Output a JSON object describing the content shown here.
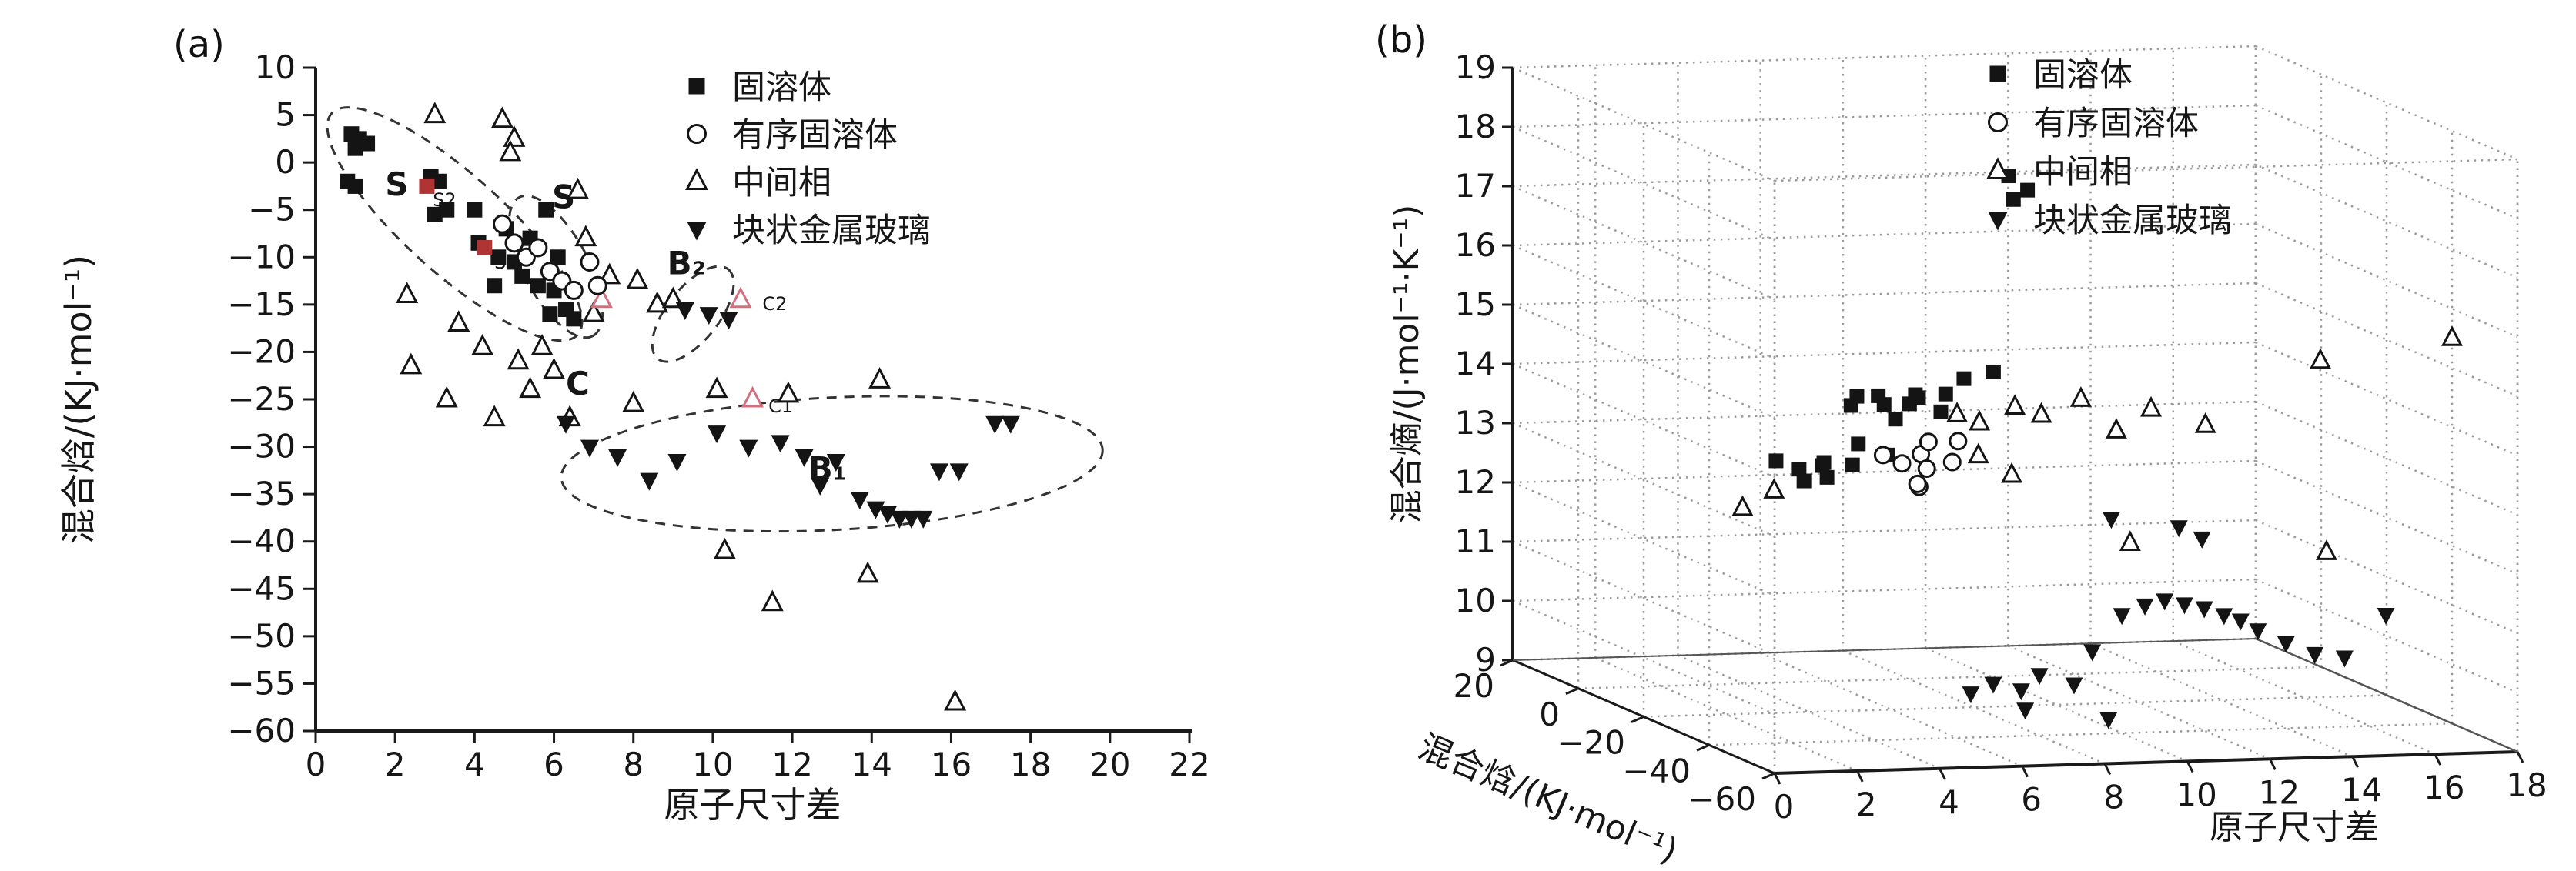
{
  "page": {
    "background": "#ffffff"
  },
  "colors": {
    "marker": "#141414",
    "axis": "#1a1a1a",
    "grid": "#9a9a9a",
    "region": "#333333",
    "annotation": "#c03038",
    "highlight_square": "#b03434",
    "highlight_triangle": "#d4707e"
  },
  "legend": {
    "items": [
      {
        "marker": "filled-square",
        "label": "固溶体"
      },
      {
        "marker": "open-circle",
        "label": "有序固溶体"
      },
      {
        "marker": "open-triangle",
        "label": "中间相"
      },
      {
        "marker": "filled-down-triangle",
        "label": "块状金属玻璃"
      }
    ]
  },
  "chart_data": [
    {
      "id": "a",
      "panel_label": "(a)",
      "type": "scatter",
      "xlabel": "原子尺寸差",
      "ylabel": "混合焓/(KJ·mol⁻¹)",
      "xlim": [
        0,
        22
      ],
      "ylim": [
        -60,
        10
      ],
      "xticks": [
        0,
        2,
        4,
        6,
        8,
        10,
        12,
        14,
        16,
        18,
        20,
        22
      ],
      "yticks": [
        10,
        5,
        0,
        -5,
        -10,
        -15,
        -20,
        -25,
        -30,
        -35,
        -40,
        -45,
        -50,
        -55,
        -60
      ],
      "grid": false,
      "legend_position": "top-right",
      "legend": [
        "固溶体",
        "有序固溶体",
        "中间相",
        "块状金属玻璃"
      ],
      "series": [
        {
          "name": "中间相",
          "marker": "open-triangle",
          "points": [
            [
              3.0,
              5
            ],
            [
              4.7,
              4.5
            ],
            [
              5.0,
              2.5
            ],
            [
              4.9,
              1
            ],
            [
              2.3,
              -14
            ],
            [
              2.4,
              -21.5
            ],
            [
              3.3,
              -25
            ],
            [
              3.6,
              -17
            ],
            [
              4.2,
              -19.5
            ],
            [
              4.5,
              -27
            ],
            [
              5.1,
              -21
            ],
            [
              5.7,
              -19.5
            ],
            [
              6.0,
              -22
            ],
            [
              6.4,
              -27
            ],
            [
              5.4,
              -24
            ],
            [
              6.6,
              -3
            ],
            [
              6.8,
              -8
            ],
            [
              7.4,
              -12
            ],
            [
              7.0,
              -16
            ],
            [
              8.1,
              -12.5
            ],
            [
              8.6,
              -15
            ],
            [
              9.0,
              -14.5
            ],
            [
              10.1,
              -24
            ],
            [
              11.9,
              -24.5
            ],
            [
              14.2,
              -23
            ],
            [
              10.3,
              -41
            ],
            [
              11.5,
              -46.5
            ],
            [
              13.9,
              -43.5
            ],
            [
              16.1,
              -57
            ],
            [
              8.0,
              -25.5
            ]
          ]
        },
        {
          "name": "中间相(标红)",
          "marker": "open-triangle",
          "color": "#d4707e",
          "in_legend": false,
          "points": [
            [
              7.2,
              -14.5
            ],
            [
              10.7,
              -14.5
            ],
            [
              11.0,
              -25
            ]
          ]
        },
        {
          "name": "固溶体",
          "marker": "filled-square",
          "points": [
            [
              0.9,
              3
            ],
            [
              1.1,
              2.5
            ],
            [
              1.0,
              1.5
            ],
            [
              1.3,
              2
            ],
            [
              0.8,
              -2
            ],
            [
              1.0,
              -2.5
            ],
            [
              2.9,
              -1.5
            ],
            [
              3.1,
              -2
            ],
            [
              3.0,
              -5.5
            ],
            [
              3.3,
              -5
            ],
            [
              4.0,
              -5
            ],
            [
              4.1,
              -8.5
            ],
            [
              4.6,
              -10
            ],
            [
              4.8,
              -7
            ],
            [
              5.0,
              -10.5
            ],
            [
              5.2,
              -12
            ],
            [
              5.4,
              -8
            ],
            [
              5.6,
              -13
            ],
            [
              5.8,
              -5
            ],
            [
              6.0,
              -13.5
            ],
            [
              6.1,
              -10
            ],
            [
              6.3,
              -15.5
            ],
            [
              6.5,
              -16.5
            ],
            [
              5.9,
              -16
            ],
            [
              4.5,
              -13
            ]
          ]
        },
        {
          "name": "固溶体(标红)",
          "marker": "filled-square",
          "color": "#b03434",
          "in_legend": false,
          "points": [
            [
              2.8,
              -2.5
            ],
            [
              4.25,
              -9
            ]
          ]
        },
        {
          "name": "有序固溶体",
          "marker": "open-circle",
          "points": [
            [
              4.7,
              -6.5
            ],
            [
              5.0,
              -8.5
            ],
            [
              5.3,
              -10
            ],
            [
              5.6,
              -9
            ],
            [
              5.9,
              -11.5
            ],
            [
              6.2,
              -12.5
            ],
            [
              6.5,
              -13.5
            ],
            [
              6.9,
              -10.5
            ],
            [
              7.1,
              -13
            ]
          ]
        },
        {
          "name": "块状金属玻璃",
          "marker": "filled-down-triangle",
          "points": [
            [
              6.3,
              -27.5
            ],
            [
              6.9,
              -30
            ],
            [
              7.6,
              -31
            ],
            [
              8.4,
              -33.5
            ],
            [
              9.3,
              -15.5
            ],
            [
              9.9,
              -16
            ],
            [
              10.4,
              -16.5
            ],
            [
              9.1,
              -31.5
            ],
            [
              10.1,
              -28.5
            ],
            [
              10.9,
              -30
            ],
            [
              11.7,
              -29.5
            ],
            [
              12.3,
              -31
            ],
            [
              12.7,
              -34
            ],
            [
              13.1,
              -31.5
            ],
            [
              13.7,
              -35.5
            ],
            [
              14.1,
              -36.5
            ],
            [
              14.4,
              -37
            ],
            [
              14.7,
              -37.5
            ],
            [
              15.0,
              -37.5
            ],
            [
              15.3,
              -37.5
            ],
            [
              15.7,
              -32.5
            ],
            [
              16.2,
              -32.5
            ],
            [
              17.1,
              -27.5
            ],
            [
              17.5,
              -27.5
            ]
          ]
        }
      ],
      "regions": [
        {
          "name": "S",
          "cx": 3.5,
          "cy": -6.5,
          "rx": 215,
          "ry": 64,
          "angle": 42
        },
        {
          "name": "S'",
          "cx": 6.05,
          "cy": -11,
          "rx": 102,
          "ry": 42,
          "angle": 62
        },
        {
          "name": "B2",
          "cx": 9.5,
          "cy": -16,
          "rx": 74,
          "ry": 34,
          "angle": -52
        },
        {
          "name": "B1",
          "cx": 13.0,
          "cy": -31.8,
          "rx": 352,
          "ry": 86,
          "angle": -3
        }
      ],
      "region_labels": [
        {
          "text": "S",
          "x": 1.75,
          "y": -3.5
        },
        {
          "text": "S'",
          "x": 5.95,
          "y": -4.8
        },
        {
          "text": "B₂",
          "x": 8.85,
          "y": -11.8
        },
        {
          "text": "C",
          "x": 6.3,
          "y": -24.5
        },
        {
          "text": "B₁",
          "x": 12.4,
          "y": -33.5
        }
      ],
      "annotations": [
        {
          "text": "S2",
          "x": 2.95,
          "y": -4.6
        },
        {
          "text": "S1",
          "x": 4.5,
          "y": -11.2
        },
        {
          "text": "C2",
          "x": 11.25,
          "y": -15.6
        },
        {
          "text": "C1",
          "x": 11.4,
          "y": -26.4
        }
      ]
    },
    {
      "id": "b",
      "panel_label": "(b)",
      "type": "scatter3d",
      "xlabel": "原子尺寸差",
      "ylabel": "混合焓/(KJ·mol⁻¹)",
      "zlabel": "混合熵/(J·mol⁻¹·K⁻¹)",
      "xlim": [
        0,
        18
      ],
      "ylim": [
        20,
        -60
      ],
      "zlim": [
        9,
        19
      ],
      "xticks": [
        0,
        2,
        4,
        6,
        8,
        10,
        12,
        14,
        16,
        18
      ],
      "yticks": [
        20,
        0,
        -20,
        -40,
        -60
      ],
      "zticks": [
        9,
        10,
        11,
        12,
        13,
        14,
        15,
        16,
        17,
        18,
        19
      ],
      "grid": true,
      "legend_position": "top",
      "legend": [
        "固溶体",
        "有序固溶体",
        "中间相",
        "块状金属玻璃"
      ],
      "series": [
        {
          "name": "中间相",
          "marker": "open-triangle",
          "points": [
            [
              2.0,
              -25,
              12.6
            ],
            [
              3.0,
              -22,
              12.8
            ],
            [
              6.8,
              -30,
              14.2
            ],
            [
              7.5,
              -28,
              14.0
            ],
            [
              8.2,
              -30,
              14.3
            ],
            [
              9.0,
              -28,
              14.1
            ],
            [
              9.8,
              -30,
              14.4
            ],
            [
              10.5,
              -32,
              13.9
            ],
            [
              11.5,
              -30,
              14.2
            ],
            [
              12.5,
              -34,
              14.0
            ],
            [
              16.0,
              -25,
              14.8
            ],
            [
              18.0,
              -40,
              15.5
            ],
            [
              8.6,
              -24,
              13.0
            ],
            [
              10.2,
              -40,
              12.2
            ],
            [
              14.8,
              -42,
              12.0
            ],
            [
              7.0,
              -34,
              13.6
            ]
          ]
        },
        {
          "name": "固溶体",
          "marker": "filled-square",
          "points": [
            [
              4.0,
              -10,
              13.0
            ],
            [
              4.4,
              -12,
              12.9
            ],
            [
              4.8,
              -14,
              13.0
            ],
            [
              4.2,
              -16,
              12.8
            ],
            [
              4.6,
              -18,
              12.9
            ],
            [
              5.0,
              -12,
              13.0
            ],
            [
              5.5,
              -14,
              14.0
            ],
            [
              5.8,
              -12,
              14.1
            ],
            [
              6.0,
              -16,
              14.2
            ],
            [
              6.3,
              -14,
              14.0
            ],
            [
              6.6,
              -18,
              14.1
            ],
            [
              6.9,
              -16,
              14.2
            ],
            [
              7.2,
              -20,
              14.0
            ],
            [
              6.1,
              -20,
              13.9
            ],
            [
              6.5,
              -22,
              14.3
            ],
            [
              7.0,
              -24,
              14.4
            ],
            [
              7.6,
              -22,
              14.6
            ],
            [
              8.0,
              -26,
              14.8
            ],
            [
              5.2,
              -20,
              13.5
            ],
            [
              9.0,
              -18,
              17.9
            ],
            [
              9.3,
              -20,
              17.7
            ],
            [
              8.8,
              -22,
              17.6
            ],
            [
              5.6,
              -24,
              13.4
            ],
            [
              4.9,
              -22,
              13.2
            ]
          ]
        },
        {
          "name": "有序固溶体",
          "marker": "open-circle",
          "points": [
            [
              5.8,
              -20,
              13.3
            ],
            [
              6.1,
              -22,
              13.2
            ],
            [
              6.4,
              -24,
              13.4
            ],
            [
              6.7,
              -22,
              13.1
            ],
            [
              7.0,
              -26,
              13.3
            ],
            [
              6.2,
              -26,
              12.9
            ],
            [
              6.9,
              -20,
              13.5
            ],
            [
              7.3,
              -24,
              13.6
            ],
            [
              6.0,
              -28,
              13.0
            ]
          ]
        },
        {
          "name": "块状金属玻璃",
          "marker": "filled-down-triangle",
          "points": [
            [
              6.5,
              -38,
              9.7
            ],
            [
              7.2,
              -36,
              9.8
            ],
            [
              7.8,
              -37,
              9.7
            ],
            [
              8.4,
              -35,
              9.9
            ],
            [
              9.0,
              -38,
              9.8
            ],
            [
              7.5,
              -42,
              9.5
            ],
            [
              9.6,
              -36,
              10.3
            ],
            [
              10.0,
              -40,
              11.0
            ],
            [
              10.4,
              -42,
              11.2
            ],
            [
              10.8,
              -43,
              11.3
            ],
            [
              11.2,
              -44,
              11.25
            ],
            [
              11.6,
              -45,
              11.2
            ],
            [
              12.0,
              -46,
              11.1
            ],
            [
              12.4,
              -46,
              11.0
            ],
            [
              12.9,
              -45,
              10.8
            ],
            [
              13.5,
              -46,
              10.6
            ],
            [
              14.2,
              -46,
              10.4
            ],
            [
              15.0,
              -45,
              10.3
            ],
            [
              16.0,
              -45,
              11.0
            ],
            [
              12.1,
              -38,
              12.2
            ],
            [
              11.7,
              -36,
              12.35
            ],
            [
              9.2,
              -46,
              9.4
            ],
            [
              10.3,
              -33,
              12.45
            ]
          ]
        }
      ]
    }
  ]
}
